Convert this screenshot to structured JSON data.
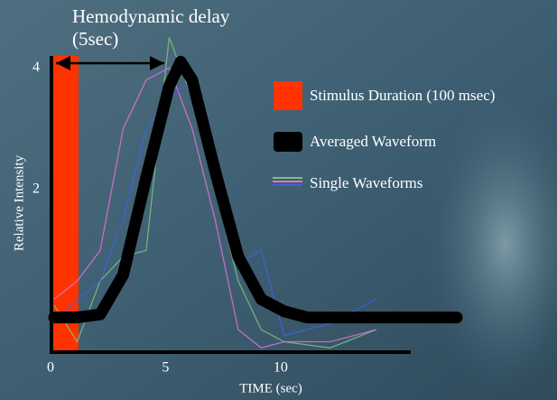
{
  "chart_data": {
    "type": "line",
    "annotation": {
      "title": "Hemodynamic delay",
      "subtitle": "(5sec)"
    },
    "y_label": "Relative Intensity",
    "x_label": "TIME (sec)",
    "xlim": [
      0,
      15.5
    ],
    "ylim": [
      -0.67,
      4.15
    ],
    "xticks": [
      0,
      5,
      10
    ],
    "yticks": [
      2,
      4
    ],
    "stimulus": {
      "label": "Stimulus Duration (100 msec)",
      "color": "#ff3300"
    },
    "series": [
      {
        "name": "Averaged Waveform",
        "color": "#000000",
        "x": [
          0,
          1,
          2,
          3,
          4,
          5,
          5.5,
          6,
          7,
          8,
          9,
          10,
          11,
          12,
          14,
          17.5
        ],
        "values": [
          -0.1,
          -0.1,
          -0.05,
          0.6,
          2.2,
          3.7,
          4.1,
          3.8,
          2.3,
          0.9,
          0.2,
          0,
          -0.1,
          -0.1,
          -0.1,
          -0.1
        ]
      }
    ],
    "single_waveforms": {
      "name": "Single Waveforms",
      "x": [
        0,
        1,
        2,
        3,
        4,
        5,
        6,
        7,
        8,
        9,
        10,
        12,
        14
      ],
      "series": [
        {
          "color": "#7fbf7f",
          "values": [
            0.1,
            -0.5,
            0.5,
            0.9,
            1.0,
            4.5,
            3.5,
            2.0,
            0.5,
            -0.3,
            -0.5,
            -0.6,
            -0.3
          ]
        },
        {
          "color": "#e070d0",
          "values": [
            0.2,
            0.5,
            1.0,
            3.0,
            3.8,
            4.0,
            3.0,
            1.5,
            -0.3,
            -0.6,
            -0.5,
            -0.5,
            -0.3
          ]
        },
        {
          "color": "#4060e0",
          "values": [
            -0.2,
            0.2,
            0.5,
            1.5,
            3.0,
            3.5,
            3.8,
            2.5,
            0.8,
            1.0,
            -0.4,
            -0.2,
            0.2
          ]
        }
      ]
    }
  }
}
